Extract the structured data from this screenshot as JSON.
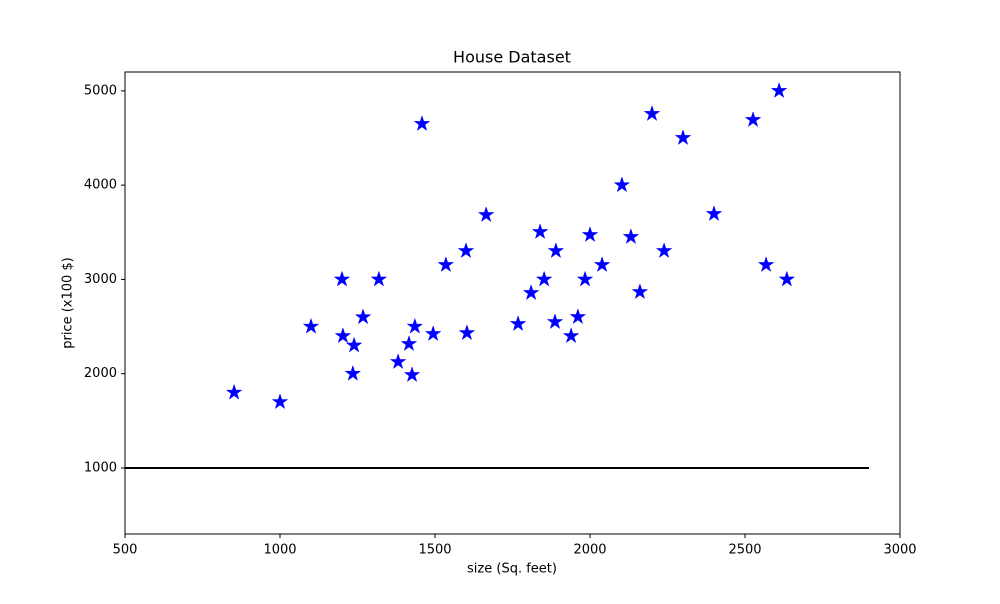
{
  "chart_data": {
    "type": "scatter",
    "title": "House Dataset",
    "x_label": "size (Sq. feet)",
    "y_label": "price (x100 $)",
    "points": {
      "color": "#0000ff",
      "marker": "star",
      "x": [
        852,
        1000,
        1100,
        1200,
        1203,
        1239,
        1235,
        1268,
        1319,
        1381,
        1416,
        1426,
        1435,
        1458,
        1494,
        1535,
        1600,
        1603,
        1665,
        1768,
        1810,
        1839,
        1852,
        1887,
        1890,
        1939,
        1961,
        1984,
        2000,
        2039,
        2103,
        2132,
        2161,
        2200,
        2239,
        2300,
        2400,
        2526,
        2568,
        2610,
        2635
      ],
      "y": [
        1800,
        1700,
        2500,
        3000,
        2400,
        2300,
        2000,
        2600,
        3000,
        2125,
        2316,
        1987,
        2500,
        4650,
        2422,
        3154,
        3302,
        2432,
        3684,
        2528,
        2857,
        3504,
        3000,
        2549,
        3302,
        2400,
        2602,
        3000,
        3472,
        3154,
        4000,
        3451,
        2867,
        4756,
        3302,
        4501,
        3695,
        4692,
        3154,
        5000,
        3000
      ]
    },
    "line": {
      "color": "#000000",
      "x": [
        500,
        2900
      ],
      "y": [
        1000,
        1000
      ]
    },
    "xlim": [
      500,
      3000
    ],
    "ylim": [
      300,
      5200
    ],
    "xticks": [
      500,
      1000,
      1500,
      2000,
      2500,
      3000
    ],
    "yticks": [
      1000,
      2000,
      3000,
      4000,
      5000
    ],
    "grid": false
  }
}
